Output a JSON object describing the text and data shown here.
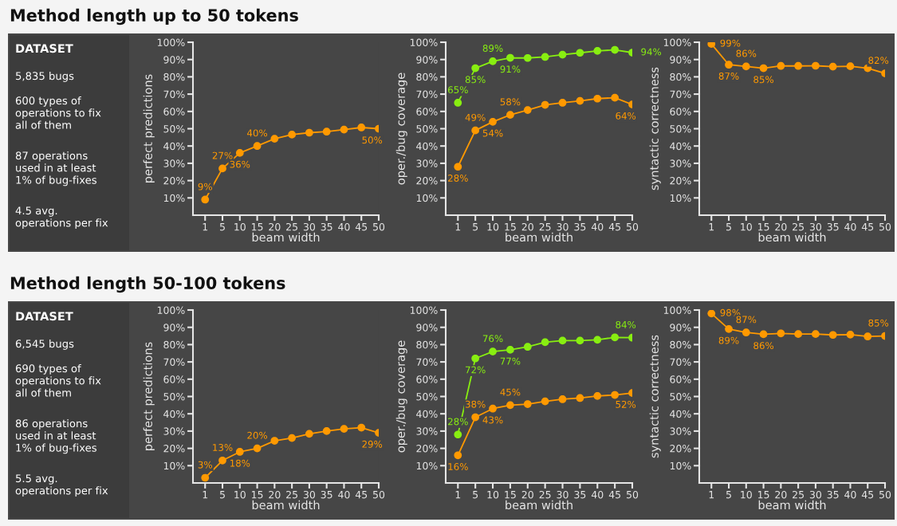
{
  "chart_data": [
    {
      "type": "other",
      "title": "Method length up to 50 tokens",
      "subtitle": "DATASET",
      "annotations": [
        "5,835 bugs",
        "600 types of\noperations to fix\nall of them",
        "87 operations\nused in at least\n1% of bug-fixes",
        "4.5 avg.\noperations per fix"
      ]
    },
    {
      "type": "line",
      "xlabel": "beam width",
      "ylabel": "perfect predictions",
      "categories": [
        "1",
        "5",
        "10",
        "15",
        "20",
        "25",
        "30",
        "35",
        "40",
        "45",
        "50"
      ],
      "ylim": [
        0,
        100
      ],
      "yticks": [
        {
          "value": 10,
          "label": "10%"
        },
        {
          "value": 20,
          "label": "20%"
        },
        {
          "value": 30,
          "label": "30%"
        },
        {
          "value": 40,
          "label": "40%"
        },
        {
          "value": 50,
          "label": "50%"
        },
        {
          "value": 60,
          "label": "60%"
        },
        {
          "value": 70,
          "label": "70%"
        },
        {
          "value": 80,
          "label": "80%"
        },
        {
          "value": 90,
          "label": "90%"
        },
        {
          "value": 100,
          "label": "100%"
        }
      ],
      "marker": "circle",
      "series": [
        {
          "color": "#ff9900",
          "values": [
            9,
            27,
            36,
            40,
            44.2,
            46.6,
            47.7,
            48.3,
            49.5,
            50.7,
            50
          ],
          "value_labels": [
            "9%",
            "27%",
            "36%",
            "40%",
            null,
            null,
            null,
            null,
            null,
            null,
            "50%"
          ]
        }
      ]
    },
    {
      "type": "line",
      "xlabel": "beam width",
      "ylabel": "oper./bug coverage",
      "categories": [
        "1",
        "5",
        "10",
        "15",
        "20",
        "25",
        "30",
        "35",
        "40",
        "45",
        "50"
      ],
      "ylim": [
        0,
        100
      ],
      "yticks": [
        {
          "value": 10,
          "label": "10%"
        },
        {
          "value": 20,
          "label": "20%"
        },
        {
          "value": 30,
          "label": "30%"
        },
        {
          "value": 40,
          "label": "40%"
        },
        {
          "value": 50,
          "label": "50%"
        },
        {
          "value": 60,
          "label": "60%"
        },
        {
          "value": 70,
          "label": "70%"
        },
        {
          "value": 80,
          "label": "80%"
        },
        {
          "value": 90,
          "label": "90%"
        },
        {
          "value": 100,
          "label": "100%"
        }
      ],
      "marker": "circle",
      "series": [
        {
          "color": "#88ee11",
          "values": [
            65,
            85,
            89,
            91,
            90.9,
            91.5,
            92.8,
            93.9,
            95,
            95.6,
            94
          ],
          "value_labels": [
            "65%",
            "85%",
            "89%",
            "91%",
            null,
            null,
            null,
            null,
            null,
            null,
            "94%"
          ]
        },
        {
          "color": "#ff9900",
          "values": [
            28,
            49,
            54,
            58,
            60.8,
            63.8,
            65,
            66.1,
            67.4,
            67.9,
            64
          ],
          "value_labels": [
            "28%",
            "49%",
            "54%",
            "58%",
            null,
            null,
            null,
            null,
            null,
            null,
            "64%"
          ]
        }
      ]
    },
    {
      "type": "line",
      "xlabel": "beam width",
      "ylabel": "syntactic correctness",
      "categories": [
        "1",
        "5",
        "10",
        "15",
        "20",
        "25",
        "30",
        "35",
        "40",
        "45",
        "50"
      ],
      "ylim": [
        0,
        100
      ],
      "yticks": [
        {
          "value": 10,
          "label": "10%"
        },
        {
          "value": 20,
          "label": "20%"
        },
        {
          "value": 30,
          "label": "30%"
        },
        {
          "value": 40,
          "label": "40%"
        },
        {
          "value": 50,
          "label": "50%"
        },
        {
          "value": 60,
          "label": "60%"
        },
        {
          "value": 70,
          "label": "70%"
        },
        {
          "value": 80,
          "label": "80%"
        },
        {
          "value": 90,
          "label": "90%"
        },
        {
          "value": 100,
          "label": "100%"
        }
      ],
      "marker": "circle",
      "series": [
        {
          "color": "#ff9900",
          "values": [
            99,
            87,
            86,
            85,
            86.3,
            86.3,
            86.4,
            85.9,
            86.1,
            85,
            82
          ],
          "value_labels": [
            "99%",
            "87%",
            "86%",
            "85%",
            null,
            null,
            null,
            null,
            null,
            null,
            "82%"
          ]
        }
      ]
    },
    {
      "type": "other",
      "title": "Method length 50-100 tokens",
      "subtitle": "DATASET",
      "annotations": [
        "6,545 bugs",
        "690 types of\noperations to fix\nall of them",
        "86 operations\nused in at least\n1% of bug-fixes",
        "5.5 avg.\noperations per fix"
      ]
    },
    {
      "type": "line",
      "xlabel": "beam width",
      "ylabel": "perfect predictions",
      "categories": [
        "1",
        "5",
        "10",
        "15",
        "20",
        "25",
        "30",
        "35",
        "40",
        "45",
        "50"
      ],
      "ylim": [
        0,
        100
      ],
      "yticks": [
        {
          "value": 10,
          "label": "10%"
        },
        {
          "value": 20,
          "label": "20%"
        },
        {
          "value": 30,
          "label": "30%"
        },
        {
          "value": 40,
          "label": "40%"
        },
        {
          "value": 50,
          "label": "50%"
        },
        {
          "value": 60,
          "label": "60%"
        },
        {
          "value": 70,
          "label": "70%"
        },
        {
          "value": 80,
          "label": "80%"
        },
        {
          "value": 90,
          "label": "90%"
        },
        {
          "value": 100,
          "label": "100%"
        }
      ],
      "marker": "circle",
      "series": [
        {
          "color": "#ff9900",
          "values": [
            3,
            13,
            18,
            20,
            24.4,
            26,
            28.4,
            30,
            31.3,
            32,
            29
          ],
          "value_labels": [
            "3%",
            "13%",
            "18%",
            "20%",
            null,
            null,
            null,
            null,
            null,
            null,
            "29%"
          ]
        }
      ]
    },
    {
      "type": "line",
      "xlabel": "beam width",
      "ylabel": "oper./bug coverage",
      "categories": [
        "1",
        "5",
        "10",
        "15",
        "20",
        "25",
        "30",
        "35",
        "40",
        "45",
        "50"
      ],
      "ylim": [
        0,
        100
      ],
      "yticks": [
        {
          "value": 10,
          "label": "10%"
        },
        {
          "value": 20,
          "label": "20%"
        },
        {
          "value": 30,
          "label": "30%"
        },
        {
          "value": 40,
          "label": "40%"
        },
        {
          "value": 50,
          "label": "50%"
        },
        {
          "value": 60,
          "label": "60%"
        },
        {
          "value": 70,
          "label": "70%"
        },
        {
          "value": 80,
          "label": "80%"
        },
        {
          "value": 90,
          "label": "90%"
        },
        {
          "value": 100,
          "label": "100%"
        }
      ],
      "marker": "circle",
      "series": [
        {
          "color": "#88ee11",
          "values": [
            28,
            72,
            76,
            77,
            78.7,
            81.4,
            82.3,
            82.3,
            82.8,
            84.2,
            84
          ],
          "value_labels": [
            "28%",
            "72%",
            "76%",
            "77%",
            null,
            null,
            null,
            null,
            null,
            null,
            "84%"
          ]
        },
        {
          "color": "#ff9900",
          "values": [
            16,
            38,
            43,
            45,
            45.6,
            47.2,
            48.4,
            49.1,
            50.3,
            50.9,
            52
          ],
          "value_labels": [
            "16%",
            "38%",
            "43%",
            "45%",
            null,
            null,
            null,
            null,
            null,
            null,
            "52%"
          ]
        }
      ]
    },
    {
      "type": "line",
      "xlabel": "beam width",
      "ylabel": "syntactic correctness",
      "categories": [
        "1",
        "5",
        "10",
        "15",
        "20",
        "25",
        "30",
        "35",
        "40",
        "45",
        "50"
      ],
      "ylim": [
        0,
        100
      ],
      "yticks": [
        {
          "value": 10,
          "label": "10%"
        },
        {
          "value": 20,
          "label": "20%"
        },
        {
          "value": 30,
          "label": "30%"
        },
        {
          "value": 40,
          "label": "40%"
        },
        {
          "value": 50,
          "label": "50%"
        },
        {
          "value": 60,
          "label": "60%"
        },
        {
          "value": 70,
          "label": "70%"
        },
        {
          "value": 80,
          "label": "80%"
        },
        {
          "value": 90,
          "label": "90%"
        },
        {
          "value": 100,
          "label": "100%"
        }
      ],
      "marker": "circle",
      "series": [
        {
          "color": "#ff9900",
          "values": [
            98,
            89,
            87,
            86,
            86.5,
            86.1,
            86.1,
            85.6,
            85.8,
            84.7,
            85
          ],
          "value_labels": [
            "98%",
            "89%",
            "87%",
            "86%",
            null,
            null,
            null,
            null,
            null,
            null,
            "85%"
          ]
        }
      ]
    }
  ]
}
